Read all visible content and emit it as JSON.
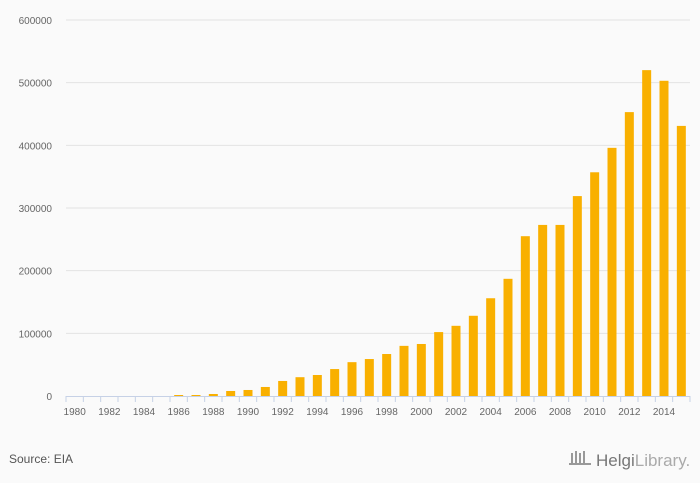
{
  "chart_data": {
    "type": "bar",
    "title": "",
    "xlabel": "",
    "ylabel": "",
    "ylim": [
      0,
      600000
    ],
    "yticks": [
      0,
      100000,
      200000,
      300000,
      400000,
      500000,
      600000
    ],
    "grid": true,
    "bar_color": "#f9b000",
    "categories": [
      "1980",
      "1981",
      "1982",
      "1983",
      "1984",
      "1985",
      "1986",
      "1987",
      "1988",
      "1989",
      "1990",
      "1991",
      "1992",
      "1993",
      "1994",
      "1995",
      "1996",
      "1997",
      "1998",
      "1999",
      "2000",
      "2001",
      "2002",
      "2003",
      "2004",
      "2005",
      "2006",
      "2007",
      "2008",
      "2009",
      "2010",
      "2011",
      "2012",
      "2013",
      "2014",
      "2015"
    ],
    "values": [
      0,
      0,
      0,
      0,
      0,
      0,
      1600,
      1600,
      3200,
      8000,
      9600,
      14400,
      24000,
      30000,
      33500,
      43000,
      54000,
      59000,
      67000,
      80000,
      83000,
      102000,
      112000,
      128000,
      156000,
      187000,
      255000,
      273000,
      273000,
      319000,
      357000,
      396000,
      453000,
      520000,
      503000,
      431000
    ]
  },
  "footer": {
    "source": "Source: EIA",
    "logo_text_bold": "Helgi",
    "logo_text": "Library."
  }
}
